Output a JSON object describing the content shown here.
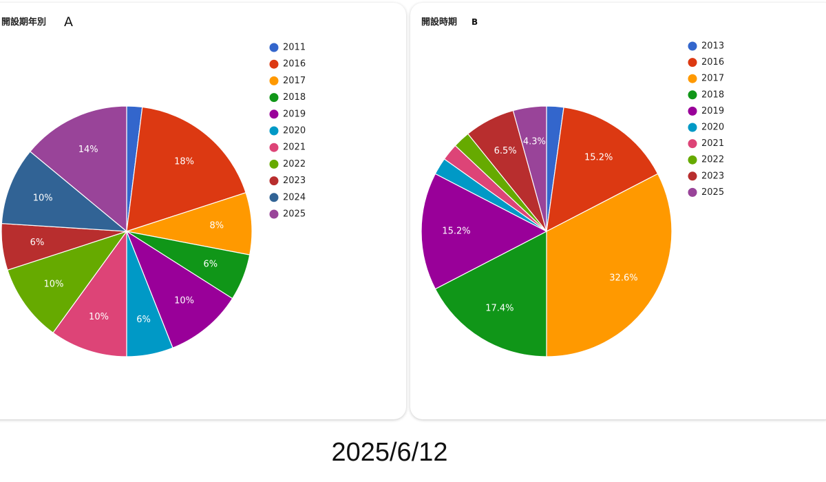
{
  "footer": {
    "date": "2025/6/12"
  },
  "chart_data": [
    {
      "type": "pie",
      "title": "開設期年別",
      "title_letter": "A",
      "slices": [
        {
          "label": "2011",
          "value": 2,
          "color": "#3366cc",
          "text": ""
        },
        {
          "label": "2016",
          "value": 18,
          "color": "#dc3912",
          "text": "18%"
        },
        {
          "label": "2017",
          "value": 8,
          "color": "#ff9900",
          "text": "8%"
        },
        {
          "label": "2018",
          "value": 6,
          "color": "#109618",
          "text": "6%"
        },
        {
          "label": "2019",
          "value": 10,
          "color": "#990099",
          "text": "10%"
        },
        {
          "label": "2020",
          "value": 6,
          "color": "#0099c6",
          "text": "6%"
        },
        {
          "label": "2021",
          "value": 10,
          "color": "#dd4477",
          "text": "10%"
        },
        {
          "label": "2022",
          "value": 10,
          "color": "#66aa00",
          "text": "10%"
        },
        {
          "label": "2023",
          "value": 6,
          "color": "#b82e2e",
          "text": "6%"
        },
        {
          "label": "2024",
          "value": 10,
          "color": "#316395",
          "text": "10%"
        },
        {
          "label": "2025",
          "value": 14,
          "color": "#994499",
          "text": "14%"
        }
      ],
      "legend_position": "right"
    },
    {
      "type": "pie",
      "title": "開設時期",
      "title_letter": "B",
      "slices": [
        {
          "label": "2013",
          "value": 2.2,
          "color": "#3366cc",
          "text": ""
        },
        {
          "label": "2016",
          "value": 15.2,
          "color": "#dc3912",
          "text": "15.2%"
        },
        {
          "label": "2017",
          "value": 32.6,
          "color": "#ff9900",
          "text": "32.6%"
        },
        {
          "label": "2018",
          "value": 17.4,
          "color": "#109618",
          "text": "17.4%"
        },
        {
          "label": "2019",
          "value": 15.2,
          "color": "#990099",
          "text": "15.2%"
        },
        {
          "label": "2020",
          "value": 2.2,
          "color": "#0099c6",
          "text": ""
        },
        {
          "label": "2021",
          "value": 2.2,
          "color": "#dd4477",
          "text": ""
        },
        {
          "label": "2022",
          "value": 2.2,
          "color": "#66aa00",
          "text": ""
        },
        {
          "label": "2023",
          "value": 6.5,
          "color": "#b82e2e",
          "text": "6.5%"
        },
        {
          "label": "2025",
          "value": 4.3,
          "color": "#994499",
          "text": "4.3%"
        }
      ],
      "legend_position": "right"
    }
  ]
}
